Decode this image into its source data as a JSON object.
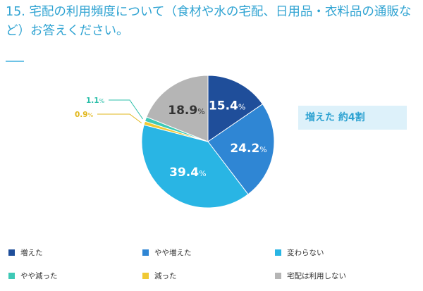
{
  "title": "15. 宅配の利用頻度について（食材や水の宅配、日用品・衣料品の通販など）お答えください。",
  "callout": "増えた 約4割",
  "chart_data": {
    "type": "pie",
    "unit": "%",
    "categories": [
      "増えた",
      "やや増えた",
      "変わらない",
      "やや減った",
      "減った",
      "宅配は利用しない"
    ],
    "values": [
      15.4,
      24.2,
      39.4,
      1.1,
      0.9,
      18.9
    ],
    "value_labels": [
      "15.4",
      "24.2",
      "39.4",
      "1.1",
      "0.9",
      "18.9"
    ],
    "colors": [
      "#1f4e9a",
      "#2f86d4",
      "#29b5e4",
      "#3ec9b6",
      "#f0c934",
      "#b5b5b5"
    ],
    "legend_position": "bottom"
  }
}
